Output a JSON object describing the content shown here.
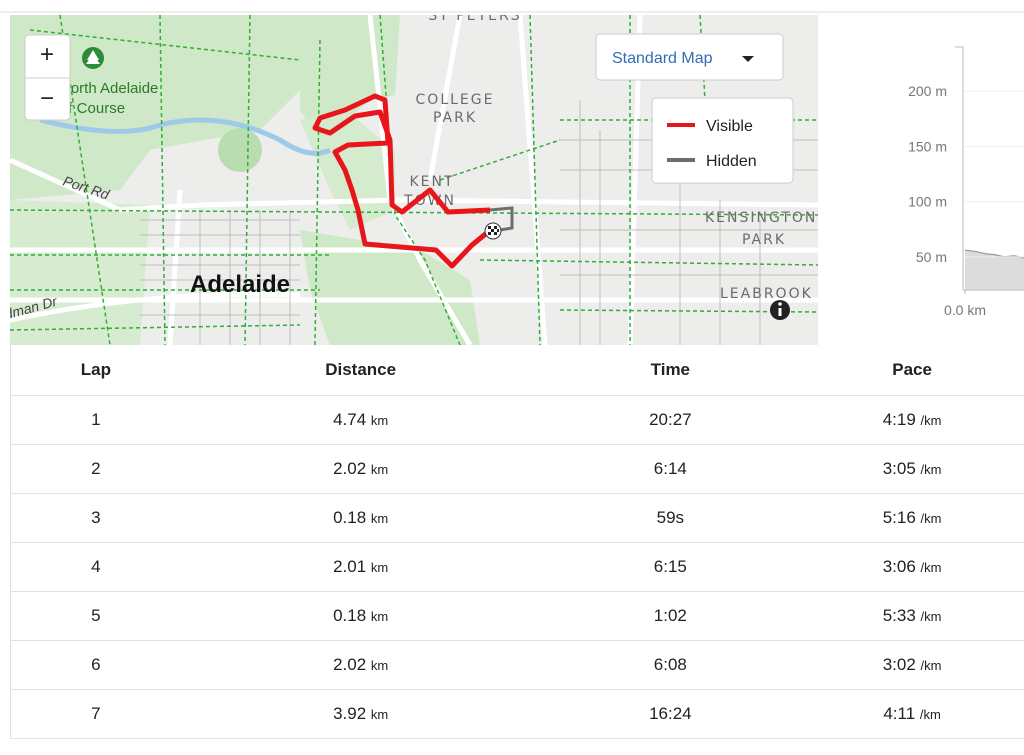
{
  "map": {
    "zoom_in": "+",
    "zoom_out": "−",
    "map_type": "Standard Map",
    "legend": {
      "visible": "Visible",
      "hidden": "Hidden"
    },
    "labels": {
      "st_peters": "ST PETERS",
      "golf_1": "North Adelaide",
      "golf_2": "Golf Course",
      "college_1": "COLLEGE",
      "college_2": "PARK",
      "kent_1": "KENT",
      "kent_2": "TOWN",
      "kensington_1": "KENSINGTON",
      "kensington_2": "PARK",
      "leabrook": "LEABROOK",
      "port_rd": "Port Rd",
      "adelaide": "Adelaide",
      "bradman": "Bradman Dr"
    }
  },
  "elevation": {
    "ylim": [
      20,
      240
    ],
    "yticks": [
      {
        "value": 50,
        "label": "50 m"
      },
      {
        "value": 100,
        "label": "100 m"
      },
      {
        "value": 150,
        "label": "150 m"
      },
      {
        "value": 200,
        "label": "200 m"
      }
    ],
    "xlim": [
      0,
      0.6
    ],
    "xticks": [
      {
        "value": 0,
        "label": "0.0 km"
      }
    ],
    "x": [
      0,
      0.1,
      0.2,
      0.3,
      0.4,
      0.5,
      0.6
    ],
    "values": [
      56,
      55,
      53,
      52,
      50,
      51,
      49
    ]
  },
  "table": {
    "headers": [
      "Lap",
      "Distance",
      "Time",
      "Pace"
    ],
    "rows": [
      {
        "lap": "1",
        "distance": "4.74",
        "distance_unit": "km",
        "time": "20:27",
        "pace": "4:19",
        "pace_unit": "/km"
      },
      {
        "lap": "2",
        "distance": "2.02",
        "distance_unit": "km",
        "time": "6:14",
        "pace": "3:05",
        "pace_unit": "/km"
      },
      {
        "lap": "3",
        "distance": "0.18",
        "distance_unit": "km",
        "time": "59s",
        "pace": "5:16",
        "pace_unit": "/km"
      },
      {
        "lap": "4",
        "distance": "2.01",
        "distance_unit": "km",
        "time": "6:15",
        "pace": "3:06",
        "pace_unit": "/km"
      },
      {
        "lap": "5",
        "distance": "0.18",
        "distance_unit": "km",
        "time": "1:02",
        "pace": "5:33",
        "pace_unit": "/km"
      },
      {
        "lap": "6",
        "distance": "2.02",
        "distance_unit": "km",
        "time": "6:08",
        "pace": "3:02",
        "pace_unit": "/km"
      },
      {
        "lap": "7",
        "distance": "3.92",
        "distance_unit": "km",
        "time": "16:24",
        "pace": "4:11",
        "pace_unit": "/km"
      }
    ]
  }
}
